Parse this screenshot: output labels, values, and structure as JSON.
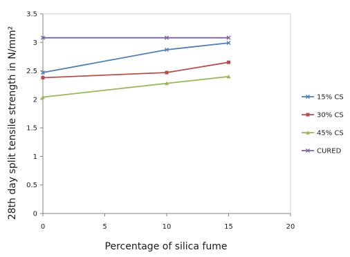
{
  "chart_data": {
    "type": "line",
    "title": "",
    "xlabel": "Percentage of silica fume",
    "ylabel": "28th day split tensile strength in N/mm²",
    "xlim": [
      0,
      20
    ],
    "ylim": [
      0,
      3.5
    ],
    "xticks": [
      0,
      5,
      10,
      15,
      20
    ],
    "yticks": [
      0,
      0.5,
      1,
      1.5,
      2,
      2.5,
      3,
      3.5
    ],
    "grid": false,
    "legend_position": "right",
    "x": [
      0,
      10,
      15
    ],
    "series": [
      {
        "name": "15% CS",
        "values": [
          2.47,
          2.87,
          2.99
        ],
        "color": "#4a7ebb",
        "marker": "x"
      },
      {
        "name": "30% CS",
        "values": [
          2.38,
          2.47,
          2.65
        ],
        "color": "#be4b48",
        "marker": "square"
      },
      {
        "name": "45% CS",
        "values": [
          2.04,
          2.28,
          2.4
        ],
        "color": "#98b954",
        "marker": "triangle"
      },
      {
        "name": "CURED",
        "values": [
          3.08,
          3.08,
          3.08
        ],
        "color": "#7d60a0",
        "marker": "x"
      }
    ]
  }
}
